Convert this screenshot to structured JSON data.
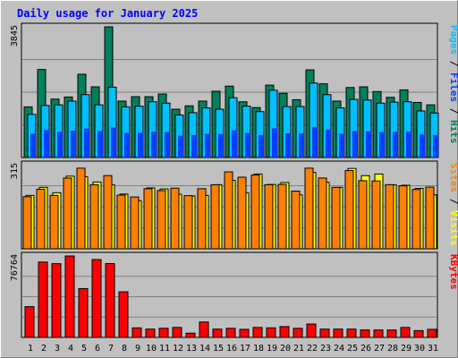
{
  "chart_data": {
    "type": "bar",
    "title": "Daily usage for January 2025",
    "days": [
      "1",
      "2",
      "3",
      "4",
      "5",
      "6",
      "7",
      "8",
      "9",
      "10",
      "11",
      "12",
      "13",
      "14",
      "15",
      "16",
      "17",
      "18",
      "19",
      "20",
      "21",
      "22",
      "23",
      "24",
      "25",
      "26",
      "27",
      "28",
      "29",
      "30",
      "31"
    ],
    "weekend_days": [
      "4",
      "5",
      "11",
      "12",
      "18",
      "19",
      "25",
      "26"
    ],
    "colors": {
      "hits": "#00805c",
      "files": "#00c0ff",
      "pages": "#0040ff",
      "visits": "#ffff00",
      "sites": "#ff8000",
      "kbytes": "#ff0000",
      "weekday_label": "#000000",
      "weekend_label": "#00805c",
      "title": "#0000ff",
      "background": "#c0c0c0",
      "plot_bg": "#c0c0c0",
      "gridline": "#808080"
    },
    "panels": [
      {
        "id": "hits-panel",
        "ylabel_parts": [
          {
            "text": "Pages",
            "color": "#00c0ff"
          },
          {
            "text": " / ",
            "color": "#000000"
          },
          {
            "text": "Files",
            "color": "#0040ff"
          },
          {
            "text": " / ",
            "color": "#000000"
          },
          {
            "text": "Hits",
            "color": "#00805c"
          }
        ],
        "ymax_label": "3845",
        "ymax": 3845,
        "series": [
          {
            "name": "Hits",
            "color": "#00805c",
            "values": [
              1490,
              2590,
              1720,
              1780,
              2450,
              2080,
              3845,
              1660,
              1790,
              1790,
              1870,
              1420,
              1520,
              1660,
              1950,
              2100,
              1640,
              1470,
              2130,
              1890,
              1700,
              2580,
              2170,
              1660,
              2060,
              2080,
              1940,
              1770,
              1990,
              1620,
              1550
            ]
          },
          {
            "name": "Files",
            "color": "#00c0ff",
            "values": [
              1270,
              1530,
              1550,
              1660,
              1850,
              1550,
              2070,
              1490,
              1510,
              1640,
              1600,
              1250,
              1320,
              1460,
              1420,
              1760,
              1510,
              1350,
              1980,
              1500,
              1500,
              2190,
              1850,
              1460,
              1710,
              1690,
              1600,
              1630,
              1640,
              1370,
              1310
            ]
          },
          {
            "name": "Pages",
            "color": "#0040ff",
            "values": [
              700,
              810,
              760,
              790,
              850,
              780,
              880,
              720,
              730,
              760,
              750,
              640,
              660,
              700,
              690,
              800,
              720,
              660,
              860,
              710,
              710,
              900,
              820,
              700,
              780,
              770,
              750,
              760,
              760,
              680,
              660
            ]
          }
        ]
      },
      {
        "id": "visits-panel",
        "ylabel_parts": [
          {
            "text": "Sites",
            "color": "#ff8000"
          },
          {
            "text": " / ",
            "color": "#000000"
          },
          {
            "text": "Visits",
            "color": "#ffff00"
          }
        ],
        "ymax_label": "315",
        "ymax": 315,
        "series": [
          {
            "name": "Visits",
            "color": "#ffff00",
            "values": [
              200,
              230,
              210,
              272,
              270,
              250,
              240,
              205,
              180,
              228,
              224,
              204,
              198,
              200,
              240,
              256,
              210,
              280,
              241,
              248,
              202,
              286,
              249,
              230,
              301,
              274,
              280,
              240,
              238,
              226,
              202
            ]
          },
          {
            "name": "Sites",
            "color": "#ff8000",
            "values": [
              195,
              223,
              200,
              265,
              302,
              240,
              274,
              201,
              194,
              225,
              218,
              227,
              199,
              225,
              240,
              288,
              268,
              276,
              240,
              241,
              216,
              302,
              265,
              230,
              293,
              255,
              254,
              240,
              236,
              222,
              231
            ]
          }
        ]
      },
      {
        "id": "kbytes-panel",
        "ylabel_parts": [
          {
            "text": "KBytes",
            "color": "#ff0000"
          }
        ],
        "ymax_label": "76764",
        "ymax": 76764,
        "series": [
          {
            "name": "KBytes",
            "color": "#ff0000",
            "values": [
              29000,
              71000,
              69500,
              76764,
              46000,
              73400,
              69600,
              43000,
              9000,
              7800,
              8600,
              9400,
              4000,
              14500,
              7800,
              8600,
              7600,
              9400,
              9000,
              10200,
              8600,
              12600,
              7800,
              7800,
              7800,
              7000,
              7000,
              7000,
              9400,
              6400,
              7600
            ]
          }
        ]
      }
    ]
  }
}
